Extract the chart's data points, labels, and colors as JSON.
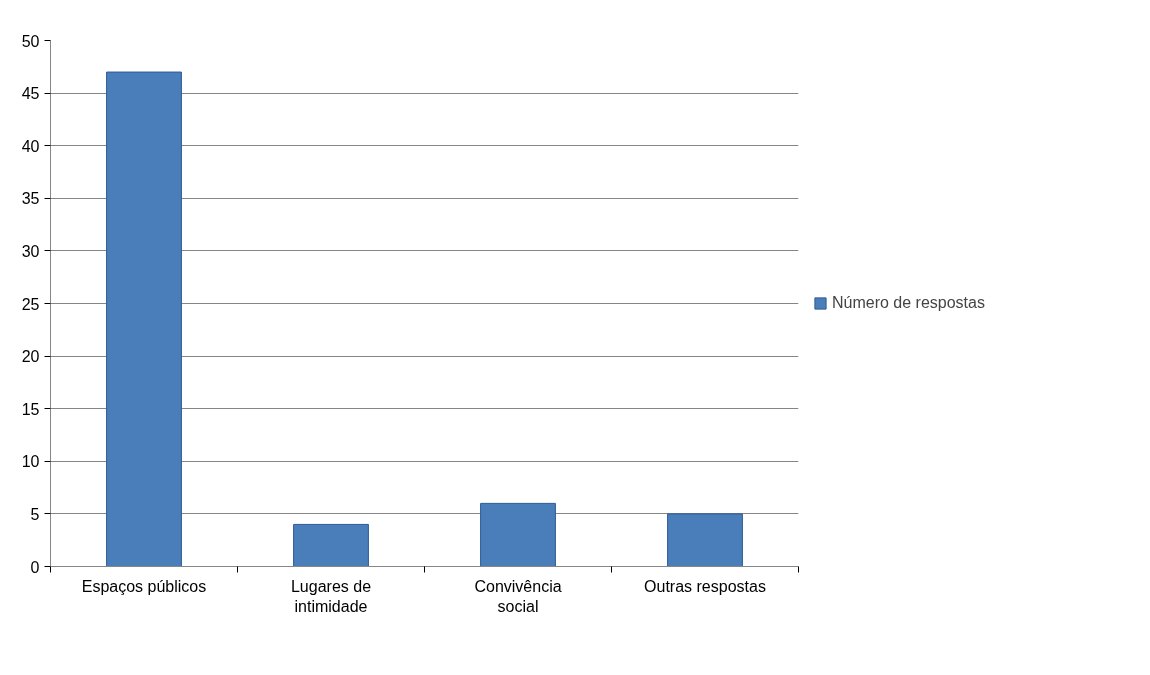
{
  "chart_data": {
    "type": "bar",
    "categories": [
      "Espaços públicos",
      "Lugares de intimidade",
      "Convivência social",
      "Outras respostas"
    ],
    "series": [
      {
        "name": "Número de respostas",
        "color": "#4a7ebb",
        "values": [
          47,
          4,
          6,
          5
        ]
      }
    ],
    "ylim": [
      0,
      50
    ],
    "yticks": [
      0,
      5,
      10,
      15,
      20,
      25,
      30,
      35,
      40,
      45,
      50
    ],
    "grid": "y",
    "legend": "right"
  }
}
